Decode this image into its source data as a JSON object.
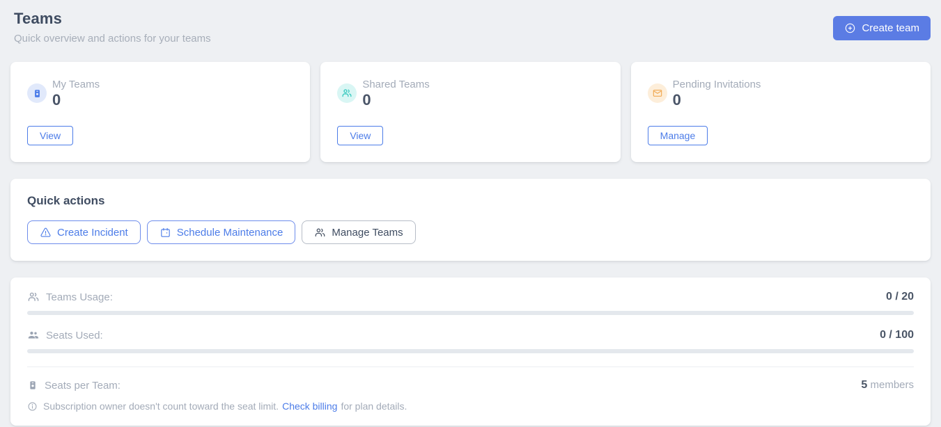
{
  "header": {
    "title": "Teams",
    "subtitle": "Quick overview and actions for your teams",
    "create_team_button": "Create team"
  },
  "stat_cards": [
    {
      "icon": "badge-icon",
      "label": "My Teams",
      "value": "0",
      "action_label": "View"
    },
    {
      "icon": "users-icon",
      "label": "Shared Teams",
      "value": "0",
      "action_label": "View"
    },
    {
      "icon": "envelope-icon",
      "label": "Pending Invitations",
      "value": "0",
      "action_label": "Manage"
    }
  ],
  "quick_actions": {
    "heading": "Quick actions",
    "buttons": [
      {
        "icon": "warning-triangle-icon",
        "label": "Create Incident"
      },
      {
        "icon": "calendar-icon",
        "label": "Schedule Maintenance"
      },
      {
        "icon": "users-icon",
        "label": "Manage Teams"
      }
    ]
  },
  "usage": {
    "teams_usage": {
      "label": "Teams Usage:",
      "value": "0 / 20",
      "progress_percent": 0
    },
    "seats_used": {
      "label": "Seats Used:",
      "value": "0 / 100",
      "progress_percent": 0
    },
    "seats_per_team": {
      "label": "Seats per Team:",
      "value": "5",
      "unit": "members"
    },
    "note": {
      "text": "Subscription owner doesn't count toward the seat limit.",
      "link_label": "Check billing",
      "suffix": "for plan details."
    }
  },
  "colors": {
    "accent_blue": "#4c7ce8",
    "primary_button_blue": "#5b7ce4",
    "teal": "#2fc7bc",
    "orange": "#f0a850",
    "page_background": "#eef0f3",
    "text_dark": "#3f4c61",
    "text_muted": "#a3abb8",
    "progress_track": "#e4e8ed"
  }
}
